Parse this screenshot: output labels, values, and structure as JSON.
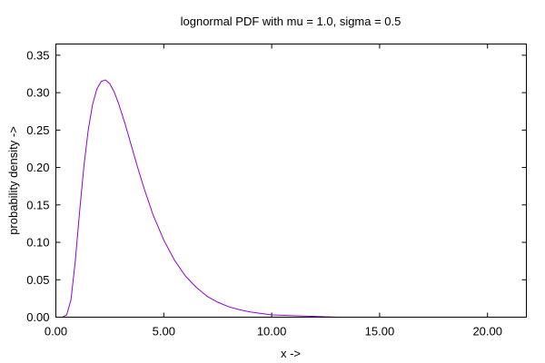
{
  "chart_data": {
    "type": "line",
    "title": "lognormal PDF with mu = 1.0, sigma = 0.5",
    "xlabel": "x ->",
    "ylabel": "probability density ->",
    "xlim": [
      0,
      21.8
    ],
    "ylim": [
      0,
      0.365
    ],
    "x_ticks": [
      {
        "value": 0,
        "label": "0.00"
      },
      {
        "value": 5,
        "label": "5.00"
      },
      {
        "value": 10,
        "label": "10.00"
      },
      {
        "value": 15,
        "label": "15.00"
      },
      {
        "value": 20,
        "label": "20.00"
      }
    ],
    "y_ticks": [
      {
        "value": 0,
        "label": "0.00"
      },
      {
        "value": 0.05,
        "label": "0.05"
      },
      {
        "value": 0.1,
        "label": "0.10"
      },
      {
        "value": 0.15,
        "label": "0.15"
      },
      {
        "value": 0.2,
        "label": "0.20"
      },
      {
        "value": 0.25,
        "label": "0.25"
      },
      {
        "value": 0.3,
        "label": "0.30"
      },
      {
        "value": 0.35,
        "label": "0.35"
      }
    ],
    "grid": false,
    "legend": "none",
    "series": [
      {
        "color": "#9400d3",
        "x": [
          0.1,
          0.3,
          0.5,
          0.7,
          0.9,
          1.1,
          1.3,
          1.5,
          1.7,
          1.9,
          2.1,
          2.3,
          2.5,
          2.7,
          2.9,
          3.2,
          3.5,
          3.8,
          4.1,
          4.5,
          5.0,
          5.5,
          6.0,
          6.5,
          7.0,
          7.5,
          8.0,
          8.5,
          9.0,
          10.0,
          11.0,
          12.0,
          13.0,
          13.7
        ],
        "y": [
          0.0,
          0.0,
          0.003,
          0.023,
          0.075,
          0.141,
          0.202,
          0.25,
          0.284,
          0.305,
          0.315,
          0.317,
          0.312,
          0.301,
          0.286,
          0.259,
          0.229,
          0.199,
          0.171,
          0.137,
          0.103,
          0.076,
          0.055,
          0.04,
          0.028,
          0.02,
          0.014,
          0.01,
          0.007,
          0.003,
          0.002,
          0.001,
          0.0,
          0.0
        ]
      }
    ]
  }
}
